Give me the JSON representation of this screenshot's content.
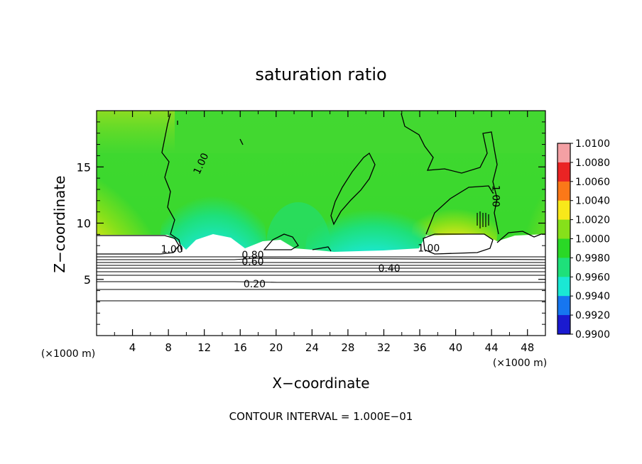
{
  "chart_data": {
    "type": "heatmap",
    "title": "saturation ratio",
    "xlabel": "X−coordinate",
    "ylabel": "Z−coordinate",
    "x_unit_label": "(×1000 m)",
    "y_unit_label": "(×1000 m)",
    "xlim": [
      0,
      50
    ],
    "ylim": [
      0,
      20
    ],
    "x_ticks": [
      4,
      8,
      12,
      16,
      20,
      24,
      28,
      32,
      36,
      40,
      44,
      48
    ],
    "y_ticks": [
      5,
      10,
      15
    ],
    "colorbar": {
      "min": 0.99,
      "max": 1.01,
      "tick_labels": [
        "1.0100",
        "1.0080",
        "1.0060",
        "1.0040",
        "1.0020",
        "1.0000",
        "0.9980",
        "0.9960",
        "0.9940",
        "0.9920",
        "0.9900"
      ],
      "colors": [
        "#f4a0a4",
        "#ea2424",
        "#fb7818",
        "#f8e81a",
        "#86e01a",
        "#2ad826",
        "#1ee07a",
        "#1ae8d4",
        "#1676f0",
        "#1a1ad0",
        "#4a14a0"
      ]
    },
    "contour_interval": 0.1,
    "contour_labels": [
      {
        "value": "1.00",
        "x": 11.6,
        "z": 15.3
      },
      {
        "value": "1.00",
        "x": 8.4,
        "z": 7.7
      },
      {
        "value": "1.00",
        "x": 37.0,
        "z": 7.8
      },
      {
        "value": "1.00",
        "x": 44.5,
        "z": 12.4
      },
      {
        "value": "0.80",
        "x": 17.4,
        "z": 7.2
      },
      {
        "value": "0.60",
        "x": 17.4,
        "z": 6.6
      },
      {
        "value": "0.40",
        "x": 32.6,
        "z": 6.0
      },
      {
        "value": "0.20",
        "x": 17.6,
        "z": 4.6
      }
    ],
    "annotations": [
      "CONTOUR INTERVAL = 1.000E−01"
    ]
  }
}
